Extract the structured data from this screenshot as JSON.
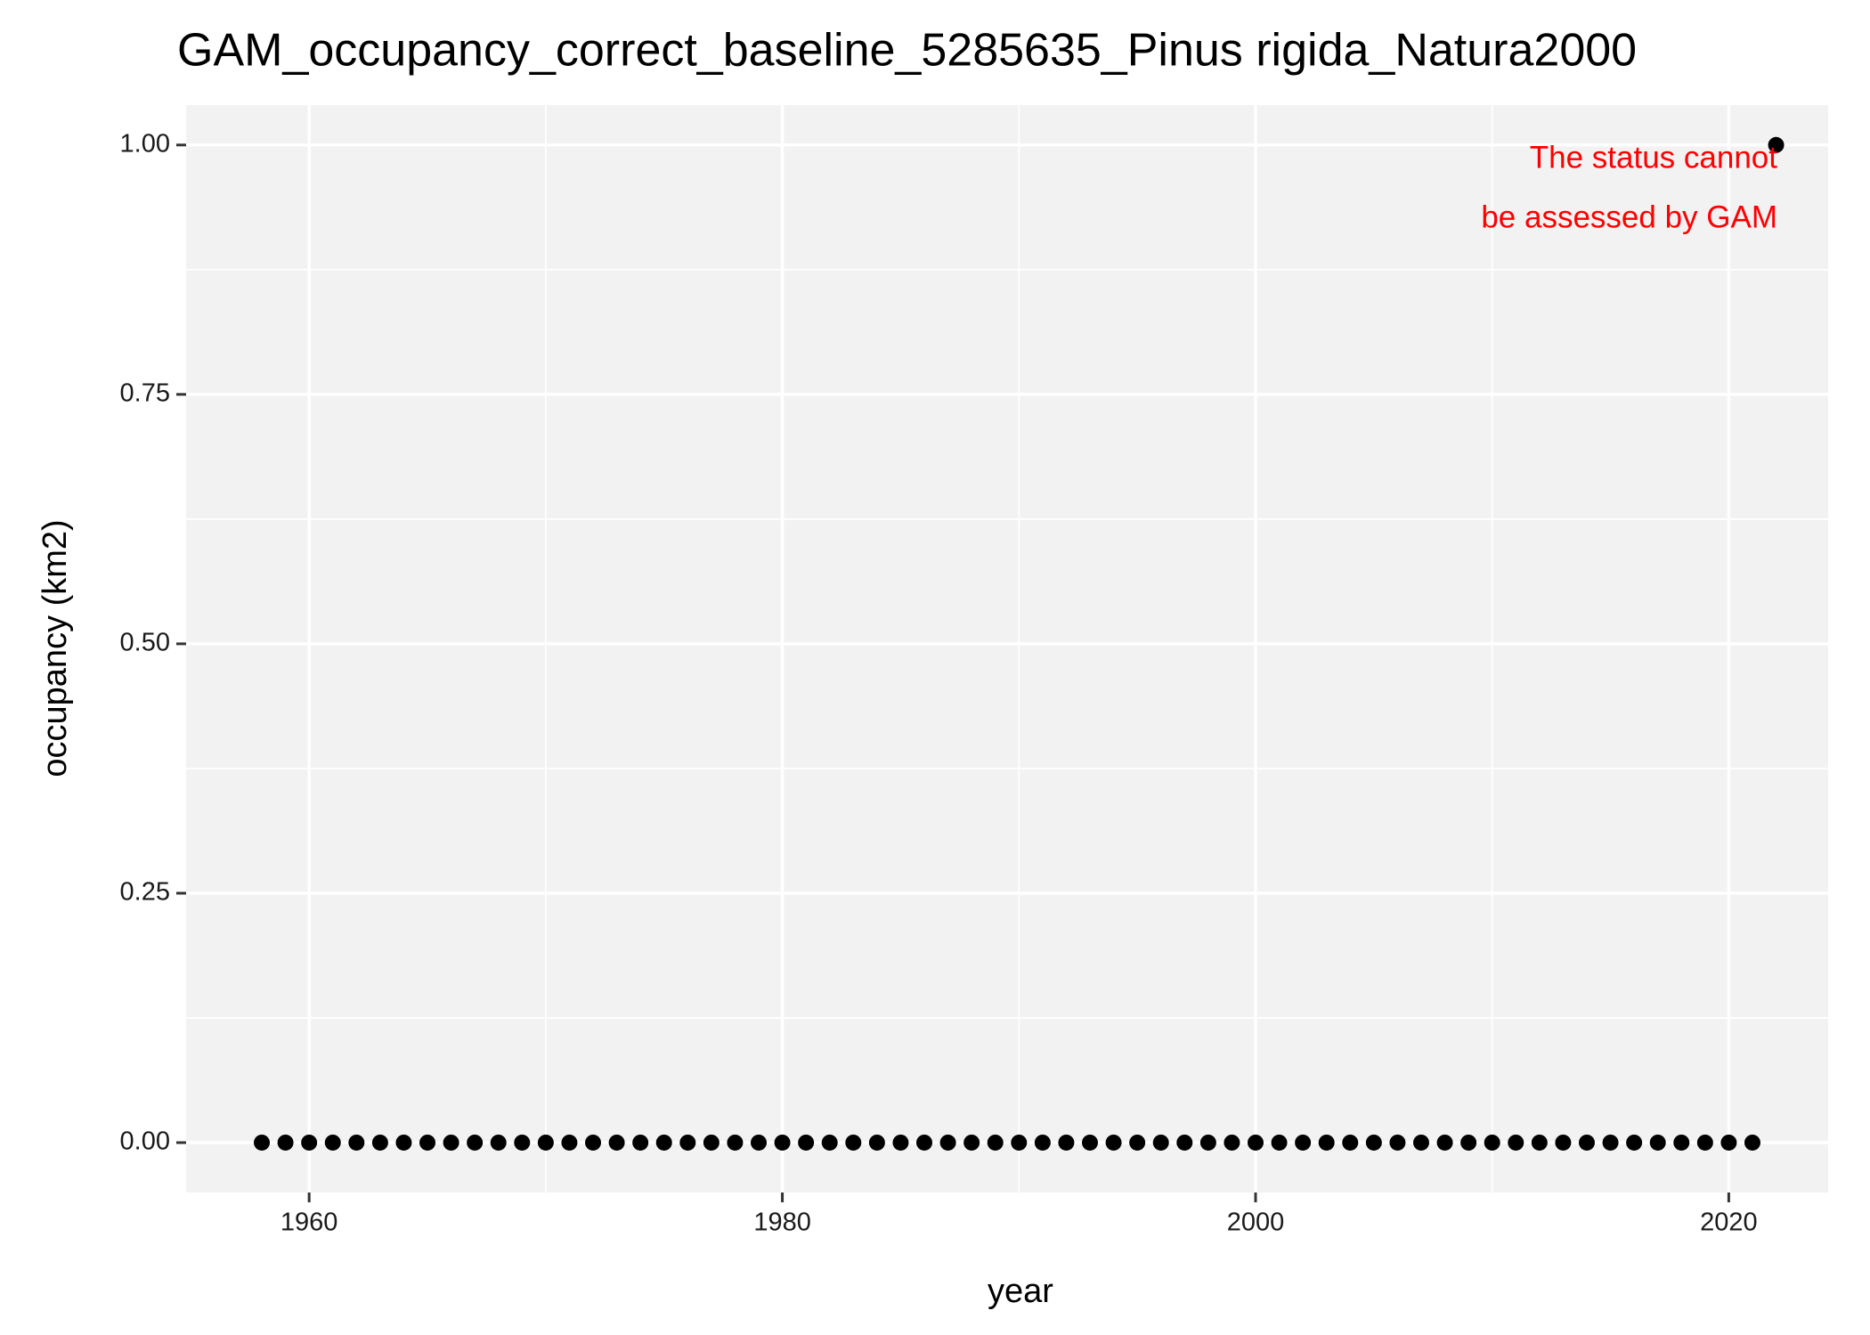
{
  "chart_data": {
    "type": "scatter",
    "title": "GAM_occupancy_correct_baseline_5285635_Pinus rigida_Natura2000",
    "x_label": "year",
    "y_label": "occupancy (km2)",
    "x": [
      1958,
      1959,
      1960,
      1961,
      1962,
      1963,
      1964,
      1965,
      1966,
      1967,
      1968,
      1969,
      1970,
      1971,
      1972,
      1973,
      1974,
      1975,
      1976,
      1977,
      1978,
      1979,
      1980,
      1981,
      1982,
      1983,
      1984,
      1985,
      1986,
      1987,
      1988,
      1989,
      1990,
      1991,
      1992,
      1993,
      1994,
      1995,
      1996,
      1997,
      1998,
      1999,
      2000,
      2001,
      2002,
      2003,
      2004,
      2005,
      2006,
      2007,
      2008,
      2009,
      2010,
      2011,
      2012,
      2013,
      2014,
      2015,
      2016,
      2017,
      2018,
      2019,
      2020,
      2021,
      2022
    ],
    "values": [
      0,
      0,
      0,
      0,
      0,
      0,
      0,
      0,
      0,
      0,
      0,
      0,
      0,
      0,
      0,
      0,
      0,
      0,
      0,
      0,
      0,
      0,
      0,
      0,
      0,
      0,
      0,
      0,
      0,
      0,
      0,
      0,
      0,
      0,
      0,
      0,
      0,
      0,
      0,
      0,
      0,
      0,
      0,
      0,
      0,
      0,
      0,
      0,
      0,
      0,
      0,
      0,
      0,
      0,
      0,
      0,
      0,
      0,
      0,
      0,
      0,
      0,
      0,
      0,
      1
    ],
    "color": "#000000",
    "xlim": [
      1954.8,
      2024.2
    ],
    "ylim": [
      -0.05,
      1.04
    ],
    "xticks": [
      1960,
      1980,
      2000,
      2020
    ],
    "yticks": [
      {
        "value": 0,
        "label": "0.00"
      },
      {
        "value": 0.25,
        "label": "0.25"
      },
      {
        "value": 0.5,
        "label": "0.50"
      },
      {
        "value": 0.75,
        "label": "0.75"
      },
      {
        "value": 1,
        "label": "1.00"
      }
    ],
    "x_minor_ticks": [
      1970,
      1990,
      2010
    ],
    "y_minor_ticks": [
      0.125,
      0.375,
      0.625,
      0.875
    ],
    "grid": true,
    "annotation": {
      "text": [
        "The status cannot",
        "be assessed by GAM"
      ],
      "color": "#ff0000"
    }
  }
}
